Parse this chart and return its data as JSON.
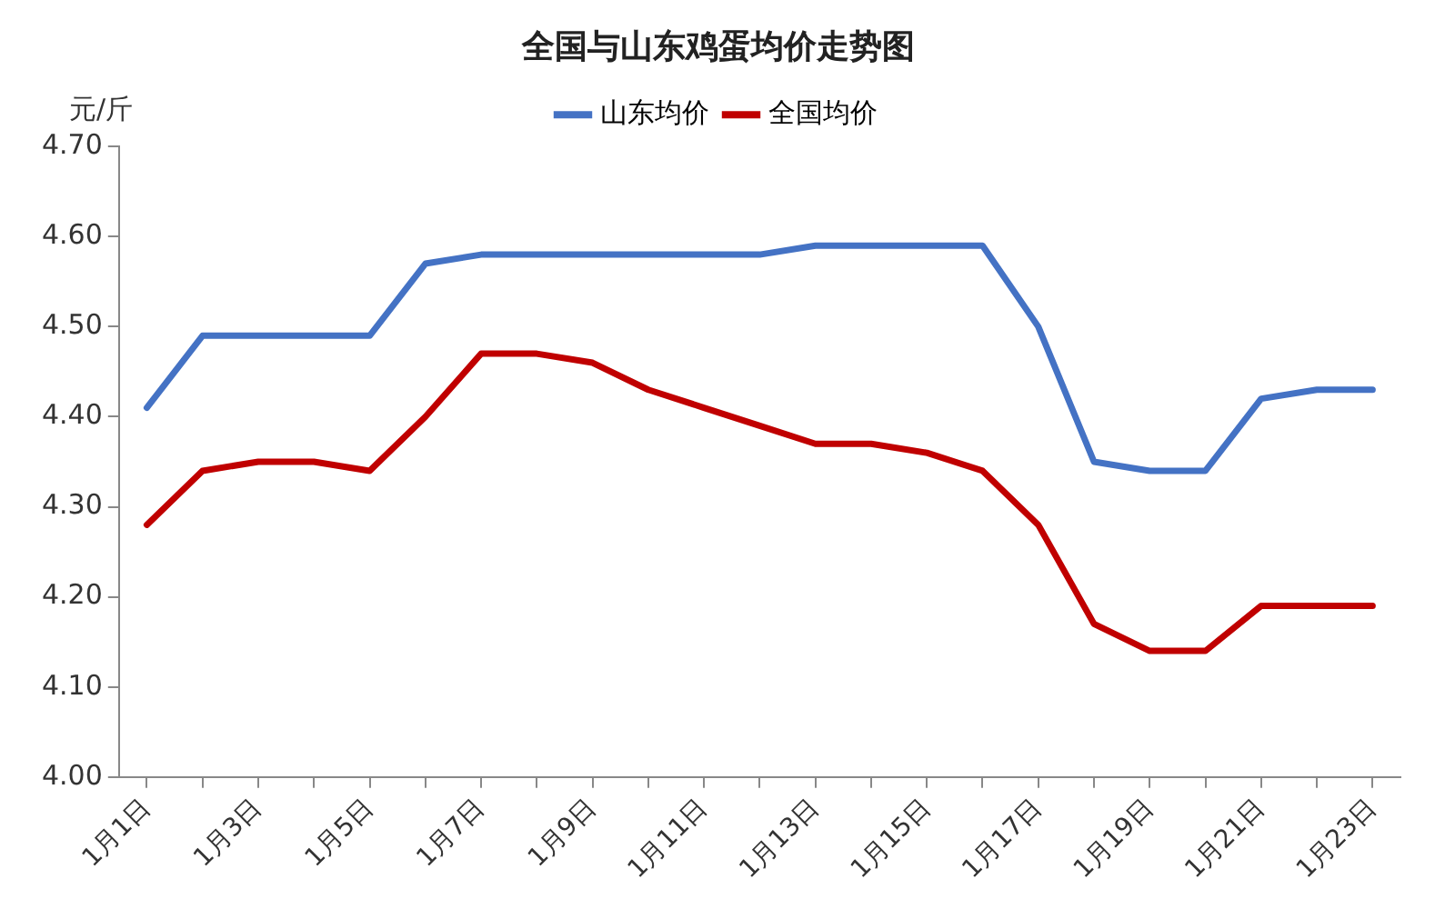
{
  "chart_data": {
    "type": "line",
    "title": "全国与山东鸡蛋均价走势图",
    "ylabel": "元/斤",
    "categories": [
      "1月1日",
      null,
      "1月3日",
      null,
      "1月5日",
      null,
      "1月7日",
      null,
      "1月9日",
      null,
      "1月11日",
      null,
      "1月13日",
      null,
      "1月15日",
      null,
      "1月17日",
      null,
      "1月19日",
      null,
      "1月21日",
      null,
      "1月23日"
    ],
    "series": [
      {
        "name": "山东均价",
        "color": "#4472c4",
        "values": [
          4.41,
          4.49,
          4.49,
          4.49,
          4.49,
          4.57,
          4.58,
          4.58,
          4.58,
          4.58,
          4.58,
          4.58,
          4.59,
          4.59,
          4.59,
          4.59,
          4.5,
          4.35,
          4.34,
          4.34,
          4.42,
          4.43,
          4.43
        ]
      },
      {
        "name": "全国均价",
        "color": "#c00000",
        "values": [
          4.28,
          4.34,
          4.35,
          4.35,
          4.34,
          4.4,
          4.47,
          4.47,
          4.46,
          4.43,
          4.41,
          4.39,
          4.37,
          4.37,
          4.36,
          4.34,
          4.28,
          4.17,
          4.14,
          4.14,
          4.19,
          4.19,
          4.19
        ]
      }
    ],
    "ylim": [
      4,
      4.7
    ],
    "yticks": [
      {
        "value": 4,
        "label": "4.00"
      },
      {
        "value": 4.1,
        "label": "4.10"
      },
      {
        "value": 4.2,
        "label": "4.20"
      },
      {
        "value": 4.3,
        "label": "4.30"
      },
      {
        "value": 4.4,
        "label": "4.40"
      },
      {
        "value": 4.5,
        "label": "4.50"
      },
      {
        "value": 4.6,
        "label": "4.60"
      },
      {
        "value": 4.7,
        "label": "4.70"
      }
    ],
    "grid": false,
    "legend": "top",
    "marker": "none",
    "line_style": "solid"
  }
}
